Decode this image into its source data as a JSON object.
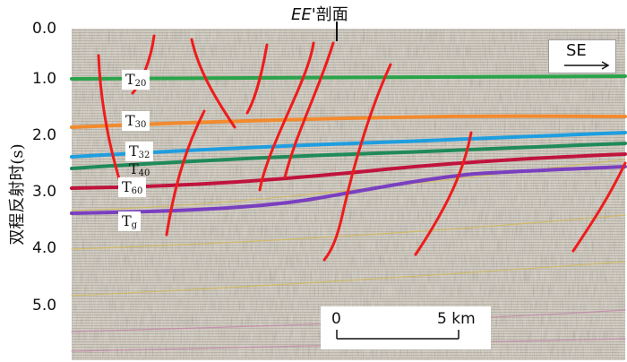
{
  "title": {
    "prefix": "EE",
    "suffix": "'剖面"
  },
  "direction": {
    "label": "SE"
  },
  "y_axis": {
    "label": "双程反射时(s)",
    "ticks": [
      "0.0",
      "1.0",
      "2.0",
      "3.0",
      "4.0",
      "5.0"
    ]
  },
  "horizons": [
    {
      "base": "T",
      "sub": "20",
      "color": "#2aa44a"
    },
    {
      "base": "T",
      "sub": "30",
      "color": "#f28a2e"
    },
    {
      "base": "T",
      "sub": "32",
      "color": "#1e9ee0"
    },
    {
      "base": "T",
      "sub": "40",
      "color": "#1f8a5a"
    },
    {
      "base": "T",
      "sub": "60",
      "color": "#c0143c"
    },
    {
      "base": "T",
      "sub": "g",
      "color": "#7a3fc0"
    }
  ],
  "fault_color": "#ee1c1c",
  "scale_bar": {
    "start": "0",
    "end": "5 km"
  }
}
